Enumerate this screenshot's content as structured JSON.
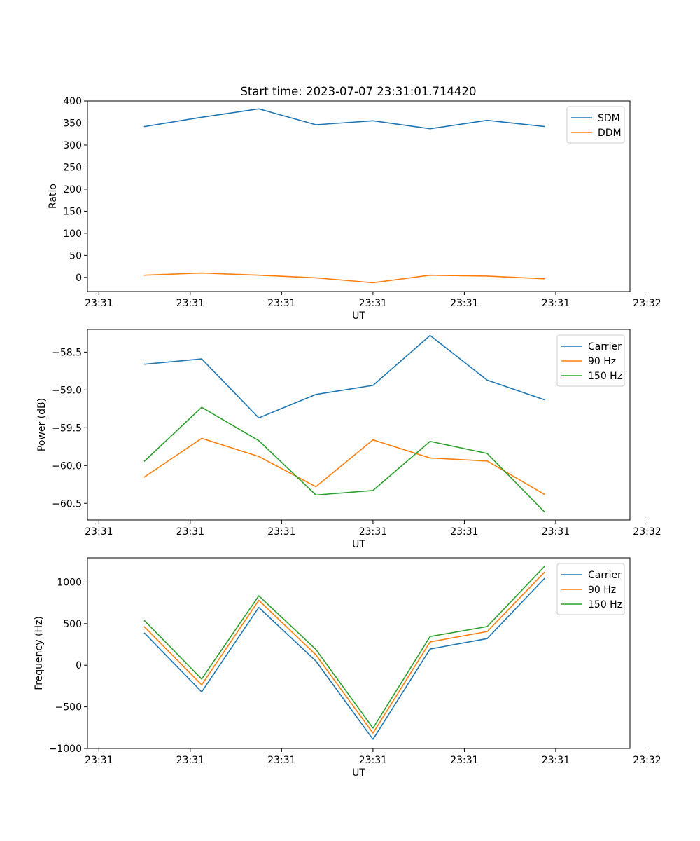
{
  "title": "Start time: 2023-07-07 23:31:01.714420",
  "colors": {
    "blue": "#1f77b4",
    "orange": "#ff7f0e",
    "green": "#2ca02c"
  },
  "chart_data": [
    {
      "type": "line",
      "ylabel": "Ratio",
      "xlabel": "UT",
      "xlim": [
        0,
        9.5
      ],
      "ylim": [
        -32,
        400
      ],
      "xticks": [
        0.2,
        1.8,
        3.4,
        5.0,
        6.6,
        8.2,
        9.8
      ],
      "xtick_labels": [
        "23:31",
        "23:31",
        "23:31",
        "23:31",
        "23:31",
        "23:31",
        "23:32"
      ],
      "yticks": [
        0,
        50,
        100,
        150,
        200,
        250,
        300,
        350,
        400
      ],
      "ytick_labels": [
        "0",
        "50",
        "100",
        "150",
        "200",
        "250",
        "300",
        "350",
        "400"
      ],
      "legend_position": "top-right",
      "x": [
        1,
        2,
        3,
        4,
        5,
        6,
        7,
        8
      ],
      "series": [
        {
          "name": "SDM",
          "color": "#1f77b4",
          "values": [
            342,
            363,
            382,
            346,
            355,
            337,
            356,
            342
          ]
        },
        {
          "name": "DDM",
          "color": "#ff7f0e",
          "values": [
            5,
            10,
            5,
            -1,
            -12,
            5,
            3,
            -3
          ]
        }
      ]
    },
    {
      "type": "line",
      "ylabel": "Power (dB)",
      "xlabel": "UT",
      "xlim": [
        0,
        9.5
      ],
      "ylim": [
        -60.72,
        -58.2
      ],
      "xticks": [
        0.2,
        1.8,
        3.4,
        5.0,
        6.6,
        8.2,
        9.8
      ],
      "xtick_labels": [
        "23:31",
        "23:31",
        "23:31",
        "23:31",
        "23:31",
        "23:31",
        "23:32"
      ],
      "yticks": [
        -58.5,
        -59.0,
        -59.5,
        -60.0,
        -60.5
      ],
      "ytick_labels": [
        "−58.5",
        "−59.0",
        "−59.5",
        "−60.0",
        "−60.5"
      ],
      "legend_position": "top-right",
      "x": [
        1,
        2,
        3,
        4,
        5,
        6,
        7,
        8
      ],
      "series": [
        {
          "name": "Carrier",
          "color": "#1f77b4",
          "values": [
            -58.66,
            -58.59,
            -59.37,
            -59.06,
            -58.94,
            -58.28,
            -58.87,
            -59.13
          ]
        },
        {
          "name": "90 Hz",
          "color": "#ff7f0e",
          "values": [
            -60.15,
            -59.64,
            -59.88,
            -60.28,
            -59.66,
            -59.9,
            -59.94,
            -60.38
          ]
        },
        {
          "name": "150 Hz",
          "color": "#2ca02c",
          "values": [
            -59.94,
            -59.23,
            -59.67,
            -60.39,
            -60.33,
            -59.68,
            -59.84,
            -60.61
          ]
        }
      ]
    },
    {
      "type": "line",
      "ylabel": "Frequency (Hz)",
      "xlabel": "UT",
      "xlim": [
        0,
        9.5
      ],
      "ylim": [
        -1000,
        1290
      ],
      "xticks": [
        0.2,
        1.8,
        3.4,
        5.0,
        6.6,
        8.2,
        9.8
      ],
      "xtick_labels": [
        "23:31",
        "23:31",
        "23:31",
        "23:31",
        "23:31",
        "23:31",
        "23:32"
      ],
      "yticks": [
        1000,
        500,
        0,
        -500,
        -1000
      ],
      "ytick_labels": [
        "1000",
        "500",
        "0",
        "−500",
        "−1000"
      ],
      "legend_position": "top-right",
      "x": [
        1,
        2,
        3,
        4,
        5,
        6,
        7,
        8
      ],
      "series": [
        {
          "name": "Carrier",
          "color": "#1f77b4",
          "values": [
            385,
            -320,
            695,
            50,
            -890,
            195,
            320,
            1040
          ]
        },
        {
          "name": "90 Hz",
          "color": "#ff7f0e",
          "values": [
            460,
            -235,
            780,
            125,
            -815,
            280,
            405,
            1115
          ]
        },
        {
          "name": "150 Hz",
          "color": "#2ca02c",
          "values": [
            535,
            -165,
            835,
            190,
            -755,
            345,
            465,
            1185
          ]
        }
      ]
    }
  ]
}
